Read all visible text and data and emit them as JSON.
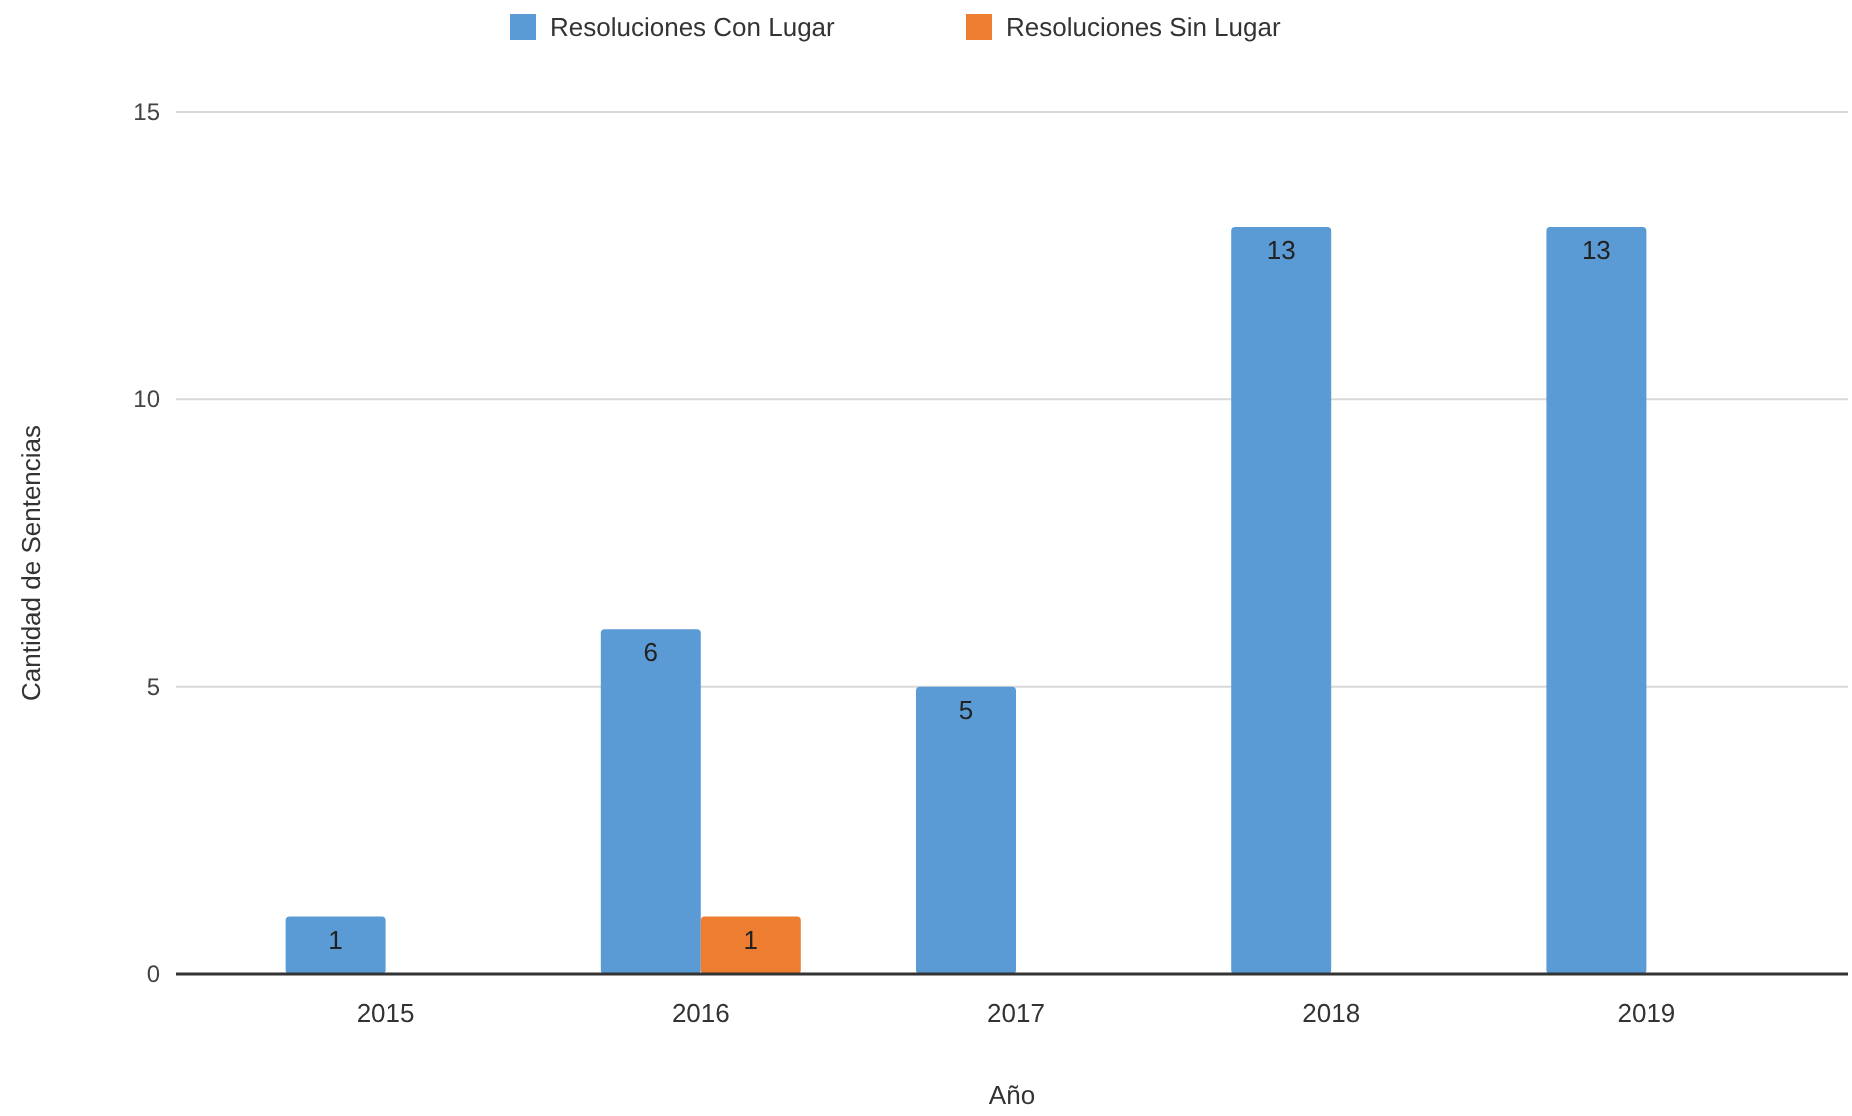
{
  "chart_data": {
    "type": "bar",
    "xlabel": "Año",
    "ylabel": "Cantidad de Sentencias",
    "categories": [
      "2015",
      "2016",
      "2017",
      "2018",
      "2019"
    ],
    "series": [
      {
        "name": "Resoluciones Con Lugar",
        "color": "#5b9bd5",
        "values": [
          1,
          6,
          5,
          13,
          13
        ]
      },
      {
        "name": "Resoluciones Sin Lugar",
        "color": "#ed7d31",
        "values": [
          null,
          1,
          null,
          null,
          null
        ]
      }
    ],
    "ylim": [
      0,
      15
    ],
    "yticks": [
      0,
      5,
      10,
      15
    ],
    "grid": "y",
    "legend": "top",
    "data_labels": true
  }
}
